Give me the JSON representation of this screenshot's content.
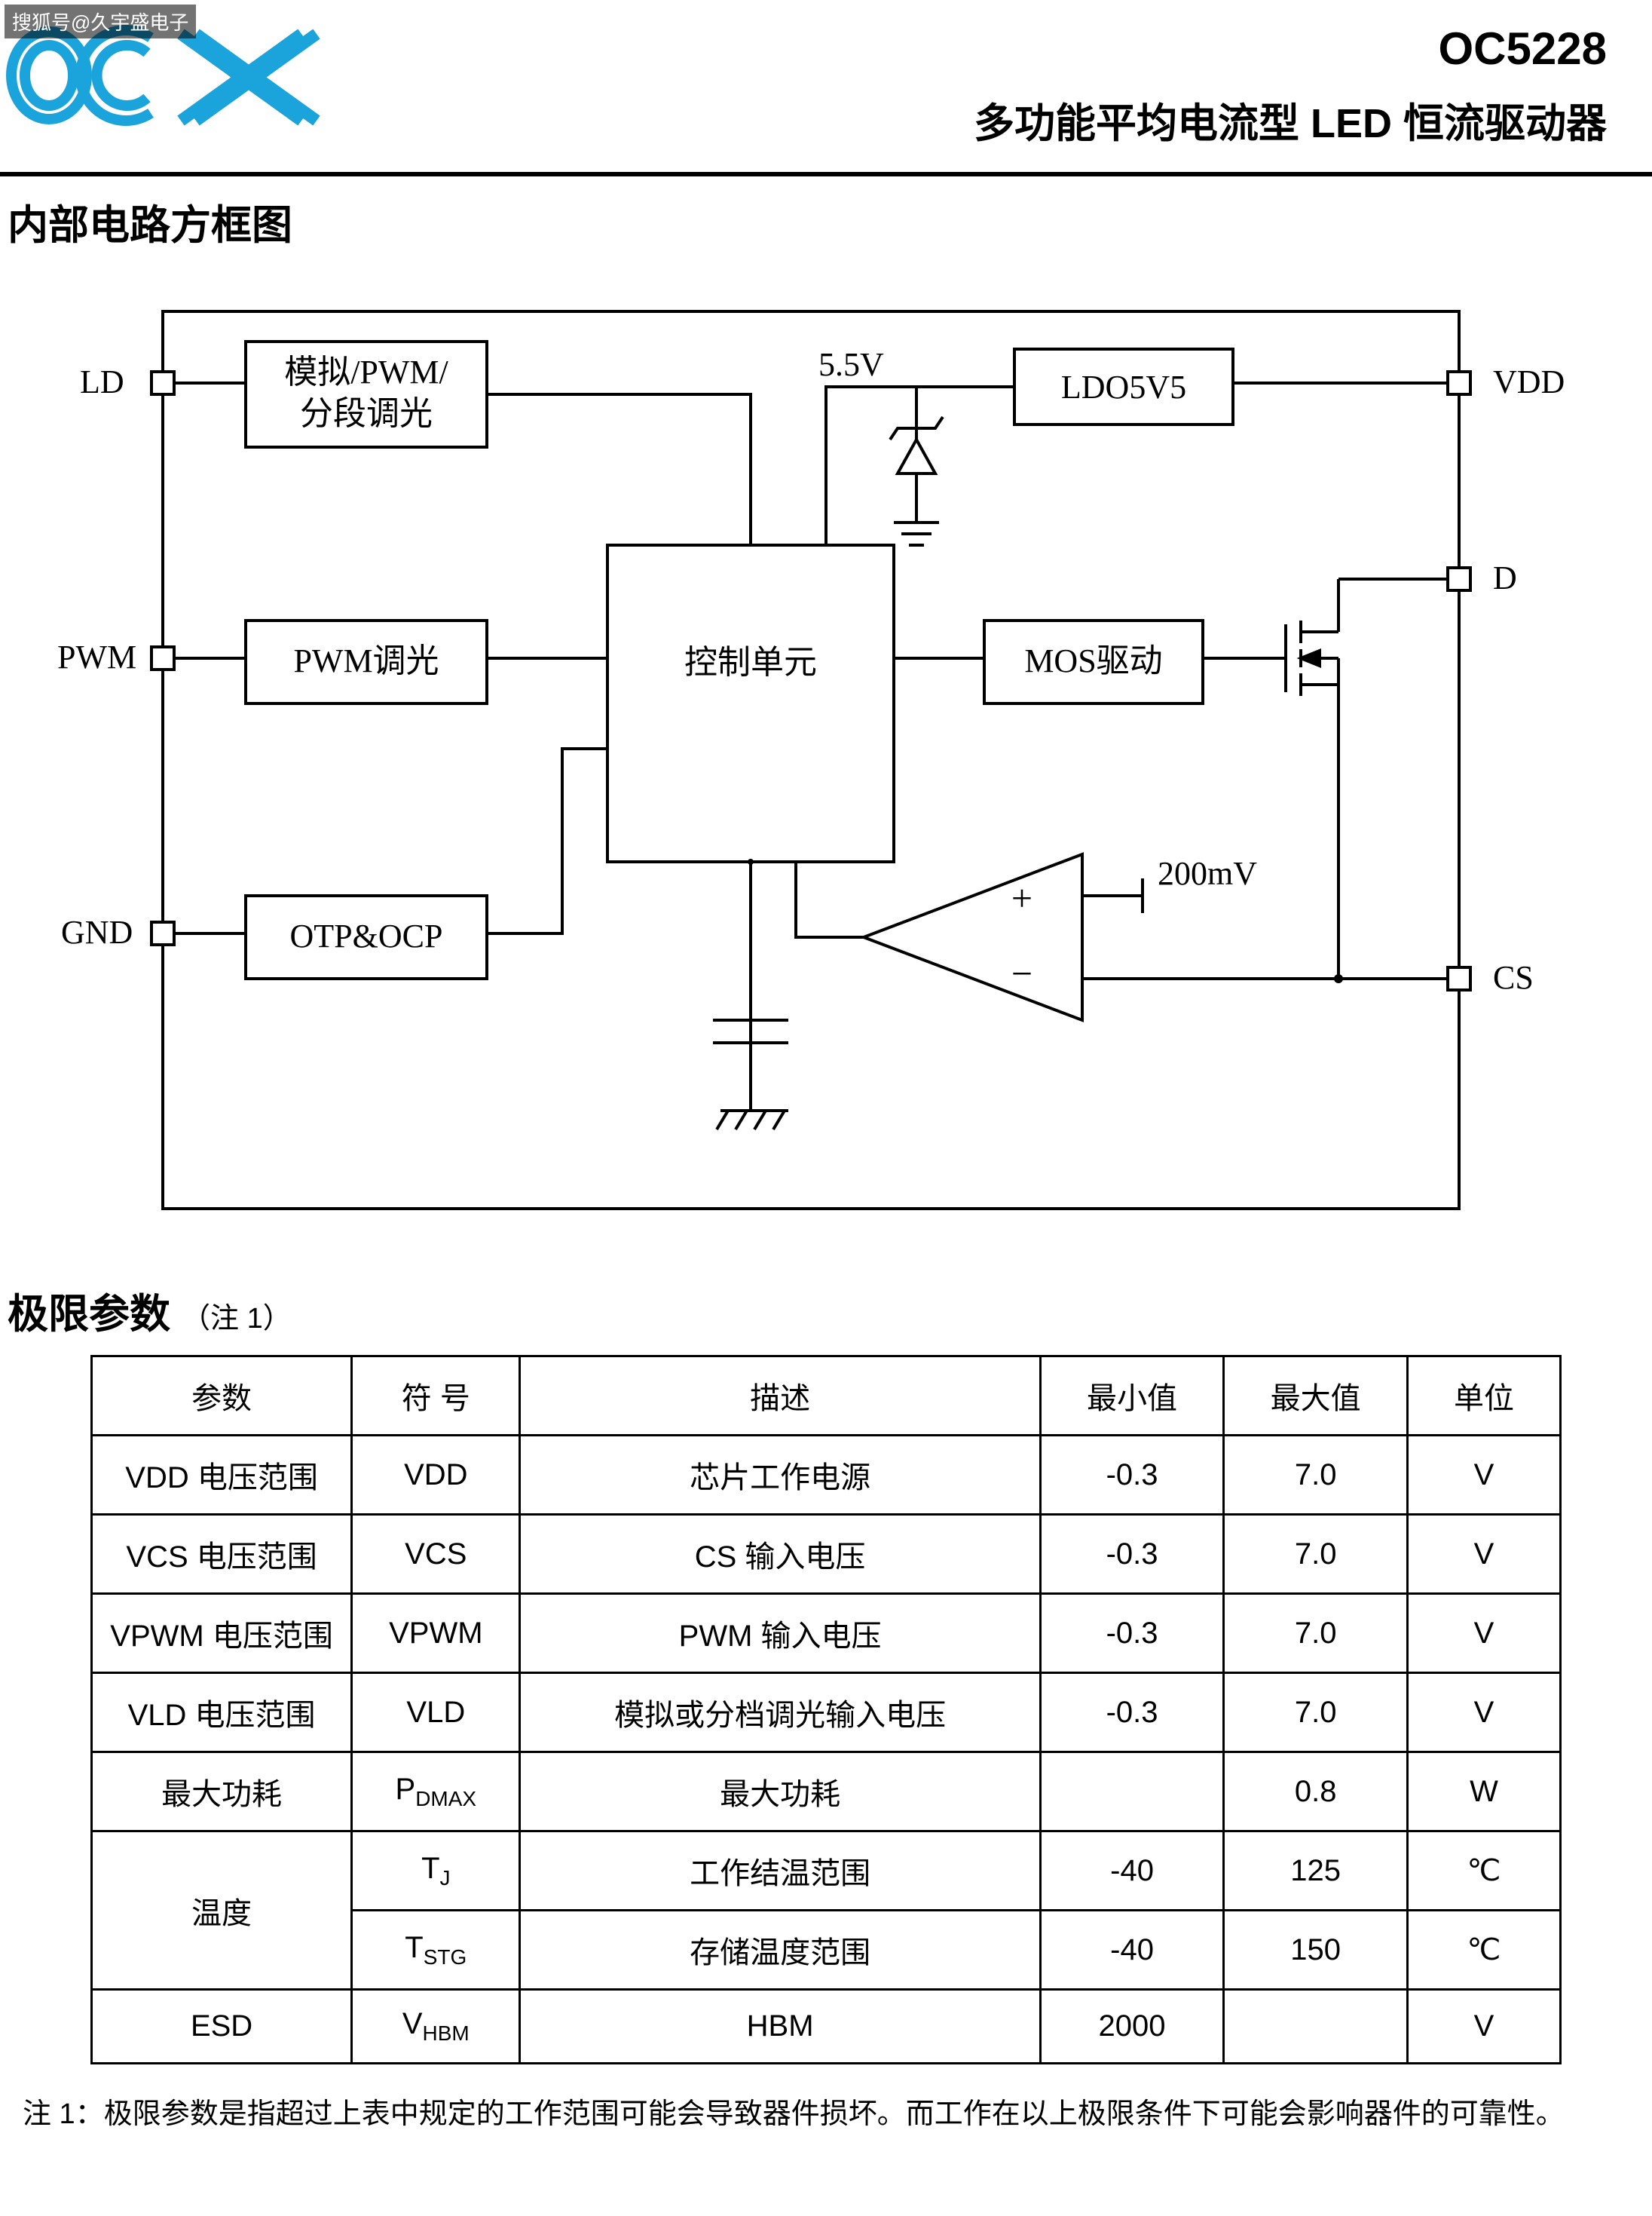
{
  "watermark": "搜狐号@久宇盛电子",
  "header": {
    "part_number": "OC5228",
    "title": "多功能平均电流型 LED 恒流驱动器"
  },
  "sections": {
    "block_diagram_title": "内部电路方框图",
    "limits_title": "极限参数",
    "limits_note": "（注 1）"
  },
  "diagram": {
    "pins": {
      "LD": "LD",
      "PWM": "PWM",
      "GND": "GND",
      "VDD": "VDD",
      "D": "D",
      "CS": "CS"
    },
    "blocks": {
      "dimming": "模拟/PWM/\n分段调光",
      "pwm_dim": "PWM调光",
      "otp_ocp": "OTP&OCP",
      "control": "控制单元",
      "ldo": "LDO5V5",
      "mos_drive": "MOS驱动"
    },
    "labels": {
      "v5_5": "5.5V",
      "v200mv": "200mV"
    },
    "colors": {
      "stroke": "#000000",
      "fill": "#ffffff"
    },
    "line_width": 3
  },
  "limits_table": {
    "columns": [
      "参数",
      "符 号",
      "描述",
      "最小值",
      "最大值",
      "单位"
    ],
    "rows": [
      {
        "param": "VDD 电压范围",
        "sym": "VDD",
        "sym_sub": "",
        "desc": "芯片工作电源",
        "min": "-0.3",
        "max": "7.0",
        "unit": "V"
      },
      {
        "param": "VCS 电压范围",
        "sym": "VCS",
        "sym_sub": "",
        "desc": "CS 输入电压",
        "min": "-0.3",
        "max": "7.0",
        "unit": "V"
      },
      {
        "param": "VPWM 电压范围",
        "sym": "VPWM",
        "sym_sub": "",
        "desc": "PWM 输入电压",
        "min": "-0.3",
        "max": "7.0",
        "unit": "V"
      },
      {
        "param": "VLD 电压范围",
        "sym": "VLD",
        "sym_sub": "",
        "desc": "模拟或分档调光输入电压",
        "min": "-0.3",
        "max": "7.0",
        "unit": "V"
      },
      {
        "param": "最大功耗",
        "sym": "P",
        "sym_sub": "DMAX",
        "desc": "最大功耗",
        "min": "",
        "max": "0.8",
        "unit": "W"
      },
      {
        "param": "温度",
        "rowspan": 2,
        "sym": "T",
        "sym_sub": "J",
        "desc": "工作结温范围",
        "min": "-40",
        "max": "125",
        "unit": "℃"
      },
      {
        "param": "",
        "sym": "T",
        "sym_sub": "STG",
        "desc": "存储温度范围",
        "min": "-40",
        "max": "150",
        "unit": "℃"
      },
      {
        "param": "ESD",
        "sym": "V",
        "sym_sub": "HBM",
        "desc": "HBM",
        "min": "2000",
        "max": "",
        "unit": "V"
      }
    ]
  },
  "footnote": "注 1：极限参数是指超过上表中规定的工作范围可能会导致器件损坏。而工作在以上极限条件下可能会影响器件的可靠性。"
}
